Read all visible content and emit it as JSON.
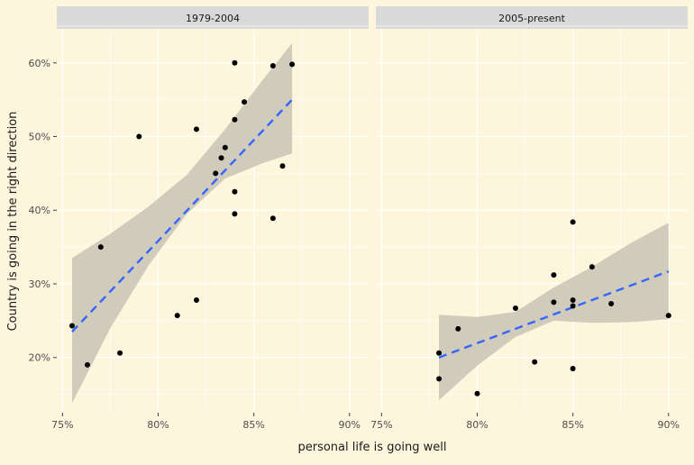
{
  "chart_data": {
    "type": "scatter",
    "xlabel": "personal life is going well",
    "ylabel": "Country is going in the right direction",
    "y_ticks": [
      20,
      30,
      40,
      50,
      60
    ],
    "y_tick_labels": [
      "20%",
      "30%",
      "40%",
      "50%",
      "60%"
    ],
    "ylim": [
      12.5,
      64.5
    ],
    "grid": true,
    "colors": {
      "background": "#fdf6dd",
      "strip": "#d9d9d9",
      "gridline": "#ffffff",
      "point": "#000000",
      "trend_line": "#3366ff",
      "confidence_band": "#c8c3b5"
    },
    "panels": [
      {
        "strip_label": "1979-2004",
        "x_ticks": [
          75,
          80,
          85,
          90
        ],
        "x_tick_labels": [
          "75%",
          "80%",
          "85%",
          "90%"
        ],
        "xlim": [
          74.7,
          91
        ],
        "points": [
          {
            "x": 75.5,
            "y": 24.3
          },
          {
            "x": 76.3,
            "y": 19.0
          },
          {
            "x": 77.0,
            "y": 35.0
          },
          {
            "x": 78.0,
            "y": 20.6
          },
          {
            "x": 79.0,
            "y": 50.0
          },
          {
            "x": 81.0,
            "y": 25.7
          },
          {
            "x": 82.0,
            "y": 27.8
          },
          {
            "x": 82.0,
            "y": 51.0
          },
          {
            "x": 83.0,
            "y": 45.0
          },
          {
            "x": 83.3,
            "y": 47.1
          },
          {
            "x": 83.5,
            "y": 48.5
          },
          {
            "x": 84.0,
            "y": 60.0
          },
          {
            "x": 84.0,
            "y": 52.3
          },
          {
            "x": 84.0,
            "y": 42.5
          },
          {
            "x": 84.0,
            "y": 39.5
          },
          {
            "x": 84.5,
            "y": 54.7
          },
          {
            "x": 86.0,
            "y": 59.6
          },
          {
            "x": 86.0,
            "y": 38.9
          },
          {
            "x": 86.5,
            "y": 46.0
          },
          {
            "x": 87.0,
            "y": 59.8
          }
        ],
        "trend": {
          "x": [
            75.5,
            87.0
          ],
          "y": [
            23.5,
            55.0
          ]
        },
        "band": {
          "x": [
            75.5,
            77.5,
            79.5,
            81.5,
            83.5,
            85.5,
            87.0
          ],
          "lower": [
            13.8,
            24.0,
            32.5,
            39.5,
            44.3,
            46.4,
            47.7
          ],
          "upper": [
            33.5,
            36.8,
            40.5,
            44.8,
            51.0,
            57.8,
            62.7
          ]
        }
      },
      {
        "strip_label": "2005-present",
        "x_ticks": [
          75,
          80,
          85,
          90
        ],
        "x_tick_labels": [
          "75%",
          "80%",
          "85%",
          "90%"
        ],
        "xlim": [
          74.7,
          91
        ],
        "points": [
          {
            "x": 78.0,
            "y": 20.6
          },
          {
            "x": 78.0,
            "y": 17.1
          },
          {
            "x": 79.0,
            "y": 23.9
          },
          {
            "x": 80.0,
            "y": 15.1
          },
          {
            "x": 82.0,
            "y": 26.7
          },
          {
            "x": 83.0,
            "y": 19.4
          },
          {
            "x": 84.0,
            "y": 31.2
          },
          {
            "x": 84.0,
            "y": 27.5
          },
          {
            "x": 85.0,
            "y": 38.4
          },
          {
            "x": 85.0,
            "y": 27.8
          },
          {
            "x": 85.0,
            "y": 27.0
          },
          {
            "x": 85.0,
            "y": 18.5
          },
          {
            "x": 86.0,
            "y": 32.3
          },
          {
            "x": 87.0,
            "y": 27.3
          },
          {
            "x": 90.0,
            "y": 25.7
          }
        ],
        "trend": {
          "x": [
            78.0,
            90.0
          ],
          "y": [
            20.0,
            31.7
          ]
        },
        "band": {
          "x": [
            78.0,
            80.0,
            82.0,
            84.0,
            86.0,
            88.0,
            90.0
          ],
          "lower": [
            14.2,
            18.9,
            22.8,
            25.0,
            24.7,
            24.8,
            25.2
          ],
          "upper": [
            25.8,
            25.5,
            26.2,
            29.5,
            32.3,
            35.5,
            38.3
          ]
        }
      }
    ]
  }
}
